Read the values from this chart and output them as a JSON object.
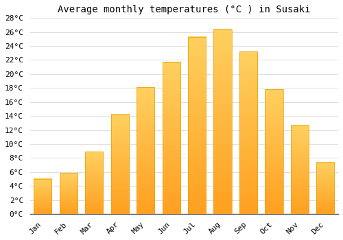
{
  "title": "Average monthly temperatures (°C ) in Susaki",
  "months": [
    "Jan",
    "Feb",
    "Mar",
    "Apr",
    "May",
    "Jun",
    "Jul",
    "Aug",
    "Sep",
    "Oct",
    "Nov",
    "Dec"
  ],
  "temperatures": [
    5.0,
    5.8,
    8.9,
    14.3,
    18.1,
    21.7,
    25.3,
    26.4,
    23.2,
    17.8,
    12.7,
    7.4
  ],
  "bar_color_bottom": "#FFA020",
  "bar_color_top": "#FFD060",
  "bar_edge_color": "#E8A000",
  "ylim": [
    0,
    28
  ],
  "yticks": [
    0,
    2,
    4,
    6,
    8,
    10,
    12,
    14,
    16,
    18,
    20,
    22,
    24,
    26,
    28
  ],
  "background_color": "#FFFFFF",
  "grid_color": "#DDDDDD",
  "title_fontsize": 10,
  "tick_fontsize": 8,
  "font_family": "monospace"
}
